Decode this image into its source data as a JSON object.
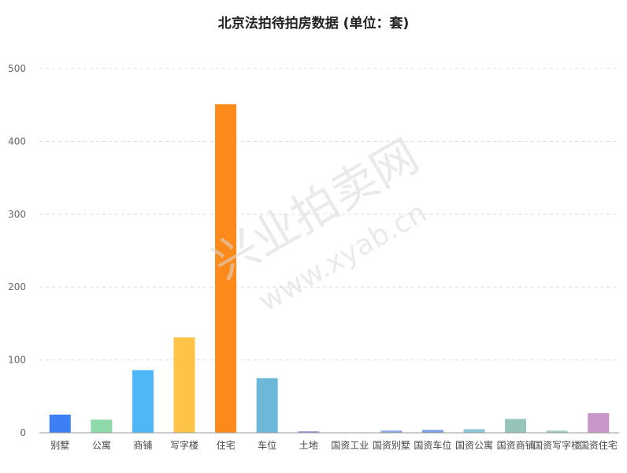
{
  "chart_data": {
    "type": "bar",
    "title": "北京法拍待拍房数据 (单位：套)",
    "categories": [
      "别墅",
      "公寓",
      "商铺",
      "写字楼",
      "住宅",
      "车位",
      "土地",
      "国资工业",
      "国资别墅",
      "国资车位",
      "国资公寓",
      "国资商铺",
      "国资写字楼",
      "国资住宅"
    ],
    "values": [
      25,
      18,
      86,
      131,
      451,
      75,
      2,
      0,
      3,
      4,
      5,
      19,
      3,
      27
    ],
    "colors": [
      "#3d7ff5",
      "#8dd9a8",
      "#4db8f5",
      "#ffc447",
      "#fb8a1a",
      "#6cb8d8",
      "#9b8fe0",
      "#b3b3b3",
      "#8aa6e6",
      "#7fa0e8",
      "#8ec5d8",
      "#96c4b8",
      "#a3cfc3",
      "#c997c9"
    ],
    "ylim": [
      0,
      500
    ],
    "yticks": [
      0,
      100,
      200,
      300,
      400,
      500
    ],
    "grid": true,
    "xlabel": "",
    "ylabel": ""
  },
  "watermark": {
    "cn": "兴业拍卖网",
    "en": "www.xyab.cn"
  }
}
